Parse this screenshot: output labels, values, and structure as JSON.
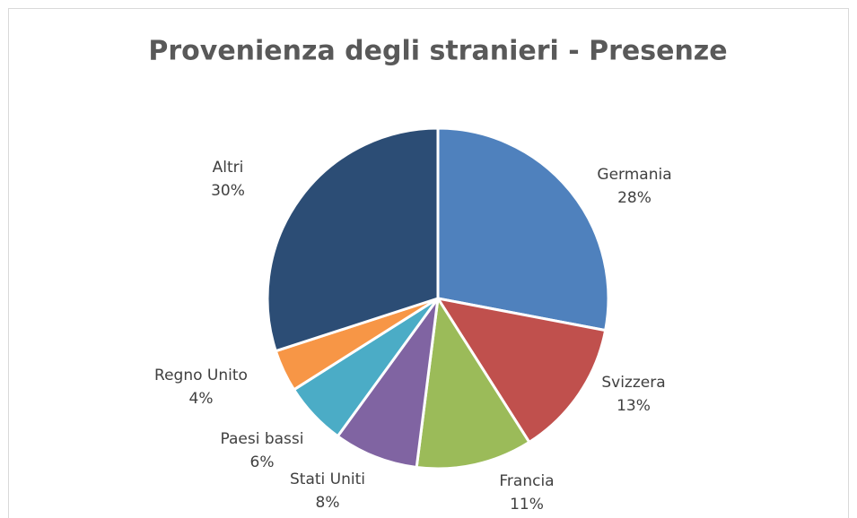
{
  "chart_data": {
    "type": "pie",
    "title": "Provenienza degli stranieri - Presenze",
    "categories": [
      "Germania",
      "Svizzera",
      "Francia",
      "Stati Uniti",
      "Paesi bassi",
      "Regno Unito",
      "Altri"
    ],
    "values": [
      28,
      13,
      11,
      8,
      6,
      4,
      30
    ],
    "value_labels": [
      "28%",
      "13%",
      "11%",
      "8%",
      "6%",
      "4%",
      "30%"
    ],
    "colors": [
      "#4f81bd",
      "#c0504d",
      "#9bbb59",
      "#8064a2",
      "#4bacc6",
      "#f79646",
      "#2c4d75"
    ]
  }
}
